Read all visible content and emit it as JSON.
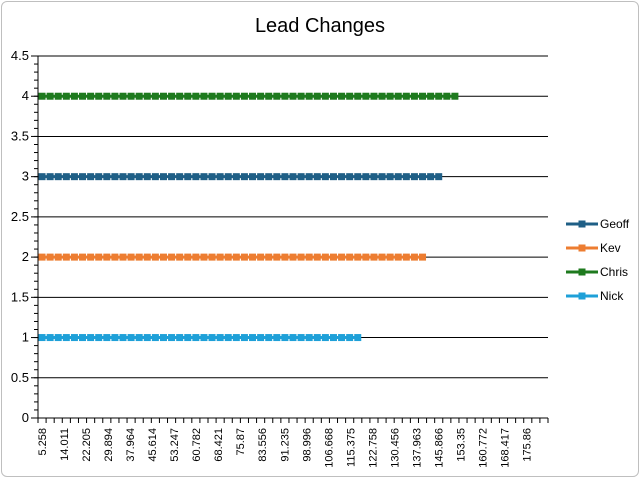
{
  "chart_data": {
    "type": "line",
    "title": "Lead Changes",
    "xlabel": "",
    "ylabel": "",
    "ylim": [
      0,
      4.5
    ],
    "yticks": [
      "0",
      "0.5",
      "1",
      "1.5",
      "2",
      "2.5",
      "3",
      "3.5",
      "4",
      "4.5"
    ],
    "x_tick_labels": [
      "5.258",
      "14.011",
      "22.205",
      "29.894",
      "37.964",
      "45.614",
      "53.247",
      "60.782",
      "68.421",
      "75.87",
      "83.556",
      "91.235",
      "98.996",
      "106.668",
      "115.375",
      "122.758",
      "130.456",
      "137.963",
      "145.866",
      "153.35",
      "160.772",
      "168.417",
      "175.86"
    ],
    "grid": "horizontal major",
    "legend_position": "right",
    "series": [
      {
        "name": "Geoff",
        "color": "#1f5f86",
        "value": 3,
        "points": 50
      },
      {
        "name": "Kev",
        "color": "#ed7d31",
        "value": 2,
        "points": 48
      },
      {
        "name": "Chris",
        "color": "#1e7a1e",
        "value": 4,
        "points": 52
      },
      {
        "name": "Nick",
        "color": "#1ea0d8",
        "value": 1,
        "points": 40
      }
    ]
  }
}
